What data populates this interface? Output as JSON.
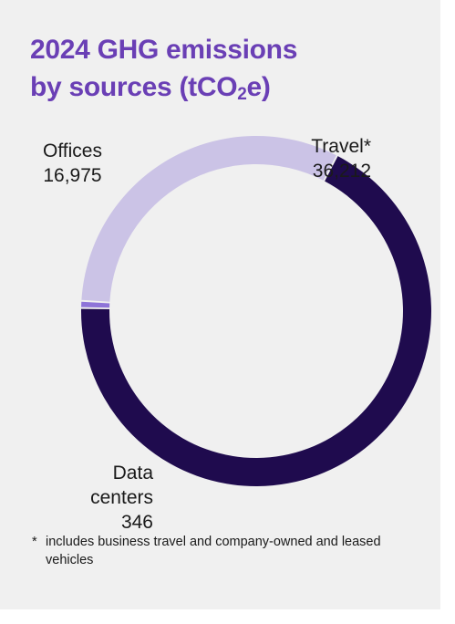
{
  "title": {
    "line1": "2024 GHG emissions",
    "line2_prefix": "by sources (tCO",
    "line2_sub": "2",
    "line2_suffix": "e)"
  },
  "chart_data": {
    "type": "pie",
    "variant": "donut",
    "title": "2024 GHG emissions by sources (tCO2e)",
    "slices": [
      {
        "name": "Travel*",
        "value": 36212,
        "value_label": "36,212",
        "color": "#1f0b4e"
      },
      {
        "name": "Data centers",
        "value": 346,
        "value_label": "346",
        "color": "#8e74d8"
      },
      {
        "name": "Offices",
        "value": 16975,
        "value_label": "16,975",
        "color": "#cbc3e6"
      }
    ]
  },
  "labels": {
    "travel": {
      "name": "Travel*",
      "value": "36,212"
    },
    "offices": {
      "name": "Offices",
      "value": "16,975"
    },
    "data_centers": {
      "line1": "Data",
      "line2": "centers",
      "value": "346"
    }
  },
  "footnote": {
    "marker": "*",
    "text": "includes business travel and company-owned and leased vehicles"
  }
}
